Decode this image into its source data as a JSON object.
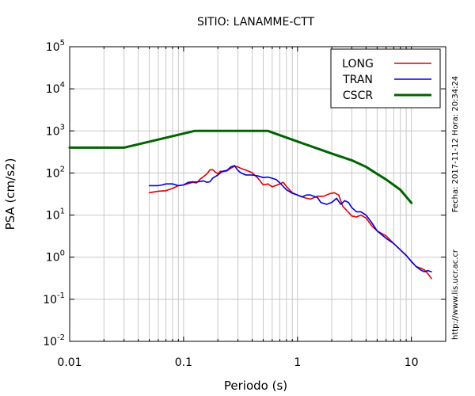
{
  "chart_data": {
    "type": "line",
    "title": "SITIO: LANAMME-CTT",
    "xlabel": "Periodo (s)",
    "ylabel": "PSA (cm/s2)",
    "x_scale": "log",
    "y_scale": "log",
    "xlim": [
      0.01,
      20
    ],
    "ylim": [
      0.01,
      100000
    ],
    "x_ticks": [
      {
        "value": 0.01,
        "label": "0.01"
      },
      {
        "value": 0.1,
        "label": "0.1"
      },
      {
        "value": 1,
        "label": "1"
      },
      {
        "value": 10,
        "label": "10"
      }
    ],
    "y_ticks": [
      {
        "value": 0.01,
        "base": "10",
        "exp": "-2"
      },
      {
        "value": 0.1,
        "base": "10",
        "exp": "-1"
      },
      {
        "value": 1,
        "base": "10",
        "exp": "0"
      },
      {
        "value": 10,
        "base": "10",
        "exp": "1"
      },
      {
        "value": 100,
        "base": "10",
        "exp": "2"
      },
      {
        "value": 1000,
        "base": "10",
        "exp": "3"
      },
      {
        "value": 10000,
        "base": "10",
        "exp": "4"
      },
      {
        "value": 100000,
        "base": "10",
        "exp": "5"
      }
    ],
    "grid": true,
    "legend_position": "top-right",
    "series": [
      {
        "name": "LONG",
        "color": "#e00000",
        "points": [
          [
            0.05,
            34
          ],
          [
            0.06,
            37
          ],
          [
            0.07,
            38
          ],
          [
            0.08,
            43
          ],
          [
            0.09,
            50
          ],
          [
            0.1,
            52
          ],
          [
            0.11,
            56
          ],
          [
            0.12,
            60
          ],
          [
            0.13,
            58
          ],
          [
            0.14,
            72
          ],
          [
            0.15,
            82
          ],
          [
            0.16,
            95
          ],
          [
            0.17,
            118
          ],
          [
            0.18,
            120
          ],
          [
            0.19,
            105
          ],
          [
            0.2,
            95
          ],
          [
            0.21,
            110
          ],
          [
            0.22,
            108
          ],
          [
            0.24,
            112
          ],
          [
            0.26,
            130
          ],
          [
            0.28,
            145
          ],
          [
            0.3,
            140
          ],
          [
            0.32,
            128
          ],
          [
            0.35,
            118
          ],
          [
            0.4,
            102
          ],
          [
            0.45,
            75
          ],
          [
            0.5,
            52
          ],
          [
            0.55,
            55
          ],
          [
            0.6,
            47
          ],
          [
            0.7,
            55
          ],
          [
            0.75,
            60
          ],
          [
            0.8,
            48
          ],
          [
            0.9,
            34
          ],
          [
            1.0,
            30
          ],
          [
            1.1,
            27
          ],
          [
            1.2,
            25
          ],
          [
            1.3,
            24
          ],
          [
            1.5,
            28
          ],
          [
            1.7,
            28
          ],
          [
            1.9,
            32
          ],
          [
            2.1,
            34
          ],
          [
            2.3,
            30
          ],
          [
            2.5,
            16
          ],
          [
            2.7,
            13
          ],
          [
            3.0,
            9.5
          ],
          [
            3.3,
            9
          ],
          [
            3.6,
            10
          ],
          [
            4.0,
            8.5
          ],
          [
            4.5,
            5.5
          ],
          [
            5.0,
            4.2
          ],
          [
            6.0,
            3.2
          ],
          [
            7.0,
            2.1
          ],
          [
            8.0,
            1.5
          ],
          [
            9.0,
            1.1
          ],
          [
            10.0,
            0.8
          ],
          [
            11.0,
            0.6
          ],
          [
            12.0,
            0.55
          ],
          [
            13.0,
            0.5
          ],
          [
            14.0,
            0.4
          ],
          [
            15.0,
            0.31
          ]
        ]
      },
      {
        "name": "TRAN",
        "color": "#0000e0",
        "points": [
          [
            0.05,
            50
          ],
          [
            0.06,
            50
          ],
          [
            0.065,
            52
          ],
          [
            0.07,
            55
          ],
          [
            0.08,
            55
          ],
          [
            0.09,
            50
          ],
          [
            0.1,
            52
          ],
          [
            0.11,
            60
          ],
          [
            0.12,
            62
          ],
          [
            0.13,
            61
          ],
          [
            0.14,
            63
          ],
          [
            0.15,
            65
          ],
          [
            0.16,
            60
          ],
          [
            0.17,
            62
          ],
          [
            0.18,
            75
          ],
          [
            0.2,
            90
          ],
          [
            0.22,
            110
          ],
          [
            0.24,
            115
          ],
          [
            0.26,
            140
          ],
          [
            0.28,
            150
          ],
          [
            0.3,
            115
          ],
          [
            0.32,
            100
          ],
          [
            0.35,
            90
          ],
          [
            0.4,
            90
          ],
          [
            0.45,
            85
          ],
          [
            0.5,
            78
          ],
          [
            0.55,
            80
          ],
          [
            0.6,
            75
          ],
          [
            0.65,
            70
          ],
          [
            0.7,
            58
          ],
          [
            0.8,
            40
          ],
          [
            0.9,
            33
          ],
          [
            1.0,
            30
          ],
          [
            1.1,
            27
          ],
          [
            1.2,
            30
          ],
          [
            1.3,
            30
          ],
          [
            1.5,
            26
          ],
          [
            1.6,
            20
          ],
          [
            1.8,
            18
          ],
          [
            2.0,
            20
          ],
          [
            2.2,
            25
          ],
          [
            2.4,
            18
          ],
          [
            2.6,
            22
          ],
          [
            2.8,
            20
          ],
          [
            3.0,
            15
          ],
          [
            3.3,
            12
          ],
          [
            3.6,
            12
          ],
          [
            4.0,
            10
          ],
          [
            4.5,
            6.5
          ],
          [
            5.0,
            4.2
          ],
          [
            6.0,
            2.8
          ],
          [
            7.0,
            2.1
          ],
          [
            8.0,
            1.5
          ],
          [
            9.0,
            1.1
          ],
          [
            10.0,
            0.78
          ],
          [
            11.0,
            0.6
          ],
          [
            12.0,
            0.5
          ],
          [
            13.0,
            0.45
          ],
          [
            14.0,
            0.48
          ],
          [
            15.0,
            0.45
          ]
        ]
      },
      {
        "name": "CSCR",
        "color": "#006400",
        "points": [
          [
            0.01,
            400
          ],
          [
            0.03,
            400
          ],
          [
            0.125,
            1000
          ],
          [
            0.55,
            1000
          ],
          [
            1.0,
            560
          ],
          [
            1.5,
            380
          ],
          [
            2.0,
            290
          ],
          [
            3.0,
            200
          ],
          [
            4.0,
            140
          ],
          [
            5.0,
            95
          ],
          [
            6.0,
            70
          ],
          [
            8.0,
            40
          ],
          [
            10.0,
            19.5
          ]
        ]
      }
    ],
    "side_labels": {
      "datetime": "Fecha: 2017-11-12 Hora: 20:34:24",
      "url": "http://www.lis.ucr.ac.cr"
    }
  }
}
